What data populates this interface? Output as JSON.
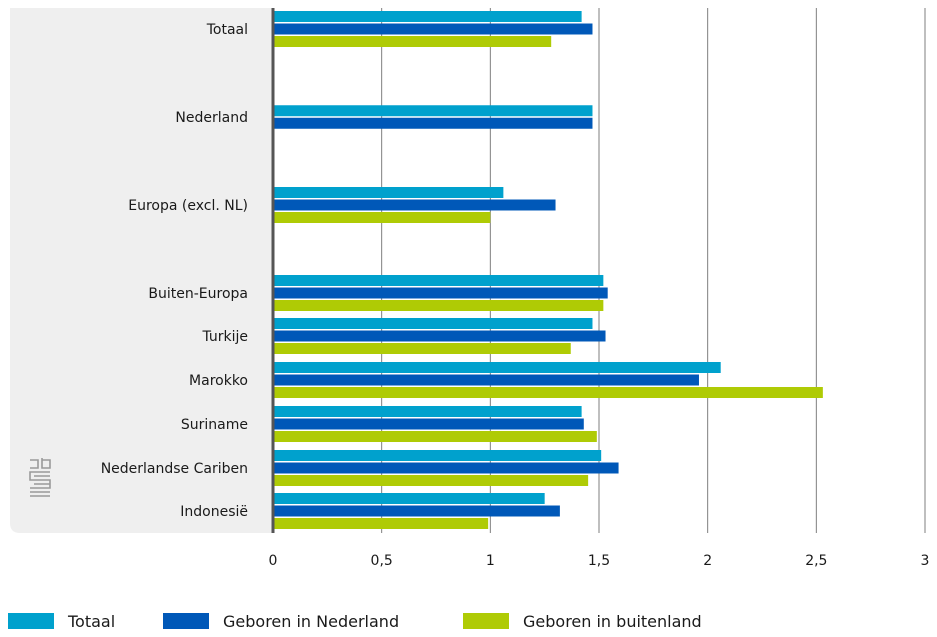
{
  "chart_data": {
    "type": "bar",
    "orientation": "horizontal",
    "categories": [
      "Totaal",
      "Nederland",
      "Europa (excl. NL)",
      "Buiten-Europa",
      "Turkije",
      "Marokko",
      "Suriname",
      "Nederlandse Cariben",
      "Indonesië"
    ],
    "series": [
      {
        "name": "Totaal",
        "color": "#00a1cd",
        "values": [
          1.42,
          1.47,
          1.06,
          1.52,
          1.47,
          2.06,
          1.42,
          1.51,
          1.25
        ]
      },
      {
        "name": "Geboren in Nederland",
        "color": "#0058b8",
        "values": [
          1.47,
          1.47,
          1.3,
          1.54,
          1.53,
          1.96,
          1.43,
          1.59,
          1.32
        ]
      },
      {
        "name": "Geboren in buitenland",
        "color": "#afcb05",
        "values": [
          1.28,
          null,
          1.0,
          1.52,
          1.37,
          2.53,
          1.49,
          1.45,
          0.99
        ]
      }
    ],
    "xlim": [
      0,
      3
    ],
    "xticks": [
      0,
      0.5,
      1,
      1.5,
      2,
      2.5,
      3
    ],
    "xtick_labels": [
      "0",
      "0,5",
      "1",
      "1,5",
      "2",
      "2,5",
      "3"
    ],
    "grid": "vertical",
    "legend_position": "bottom",
    "title": "",
    "xlabel": "",
    "ylabel": ""
  },
  "logo_icon": "cbs-logo-icon"
}
